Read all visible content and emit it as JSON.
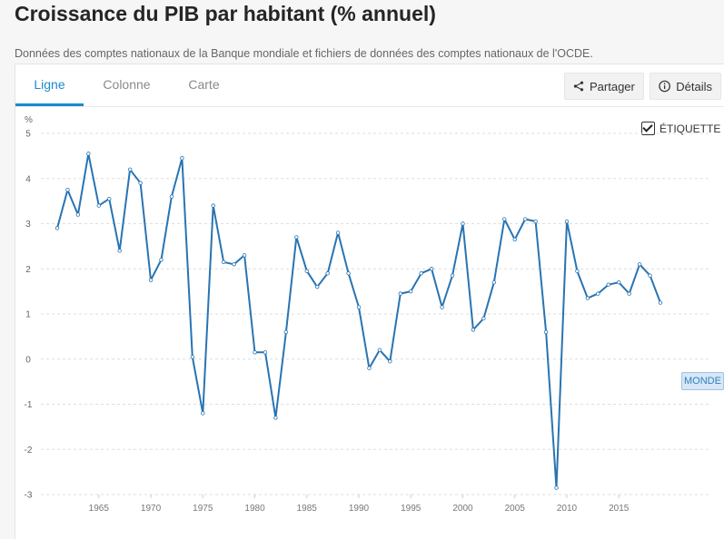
{
  "title": "Croissance du PIB par habitant (% annuel)",
  "source": "Données des comptes nationaux de la Banque mondiale et fichiers de données des comptes nationaux de l'OCDE.",
  "tabs": [
    {
      "label": "Ligne",
      "active": true
    },
    {
      "label": "Colonne",
      "active": false
    },
    {
      "label": "Carte",
      "active": false
    }
  ],
  "buttons": {
    "share": "Partager",
    "details": "Détails"
  },
  "label_toggle": "ÉTIQUETTE",
  "icons": {
    "share": "share-icon",
    "details": "info-icon",
    "checkbox": "check-icon"
  },
  "colors": {
    "line": "#2874b2",
    "accent": "#1a8bd0"
  },
  "chart_data": {
    "type": "line",
    "title": "",
    "ylabel": "%",
    "xlabel": "",
    "ylim": [
      -3,
      5
    ],
    "yticks": [
      5,
      4,
      3,
      2,
      1,
      0,
      -1,
      -2,
      -3
    ],
    "xticks": [
      1965,
      1970,
      1975,
      1980,
      1985,
      1990,
      1995,
      2000,
      2005,
      2010,
      2015
    ],
    "grid": true,
    "series": [
      {
        "name": "MONDE",
        "x": [
          1961,
          1962,
          1963,
          1964,
          1965,
          1966,
          1967,
          1968,
          1969,
          1970,
          1971,
          1972,
          1973,
          1974,
          1975,
          1976,
          1977,
          1978,
          1979,
          1980,
          1981,
          1982,
          1983,
          1984,
          1985,
          1986,
          1987,
          1988,
          1989,
          1990,
          1991,
          1992,
          1993,
          1994,
          1995,
          1996,
          1997,
          1998,
          1999,
          2000,
          2001,
          2002,
          2003,
          2004,
          2005,
          2006,
          2007,
          2008,
          2009,
          2010,
          2011,
          2012,
          2013,
          2014,
          2015,
          2016,
          2017,
          2018,
          2019
        ],
        "values": [
          2.9,
          3.75,
          3.2,
          4.55,
          3.4,
          3.55,
          2.4,
          4.2,
          3.9,
          1.75,
          2.2,
          3.6,
          4.45,
          0.05,
          -1.2,
          3.4,
          2.15,
          2.1,
          2.3,
          0.15,
          0.15,
          -1.3,
          0.6,
          2.7,
          1.95,
          1.6,
          1.9,
          2.8,
          1.9,
          1.15,
          -0.2,
          0.2,
          -0.05,
          1.45,
          1.5,
          1.9,
          2.0,
          1.15,
          1.85,
          3.0,
          0.65,
          0.9,
          1.7,
          3.1,
          2.65,
          3.1,
          3.05,
          0.6,
          -2.85,
          3.05,
          1.95,
          1.35,
          1.45,
          1.65,
          1.7,
          1.45,
          2.1,
          1.85,
          1.25
        ]
      }
    ]
  }
}
